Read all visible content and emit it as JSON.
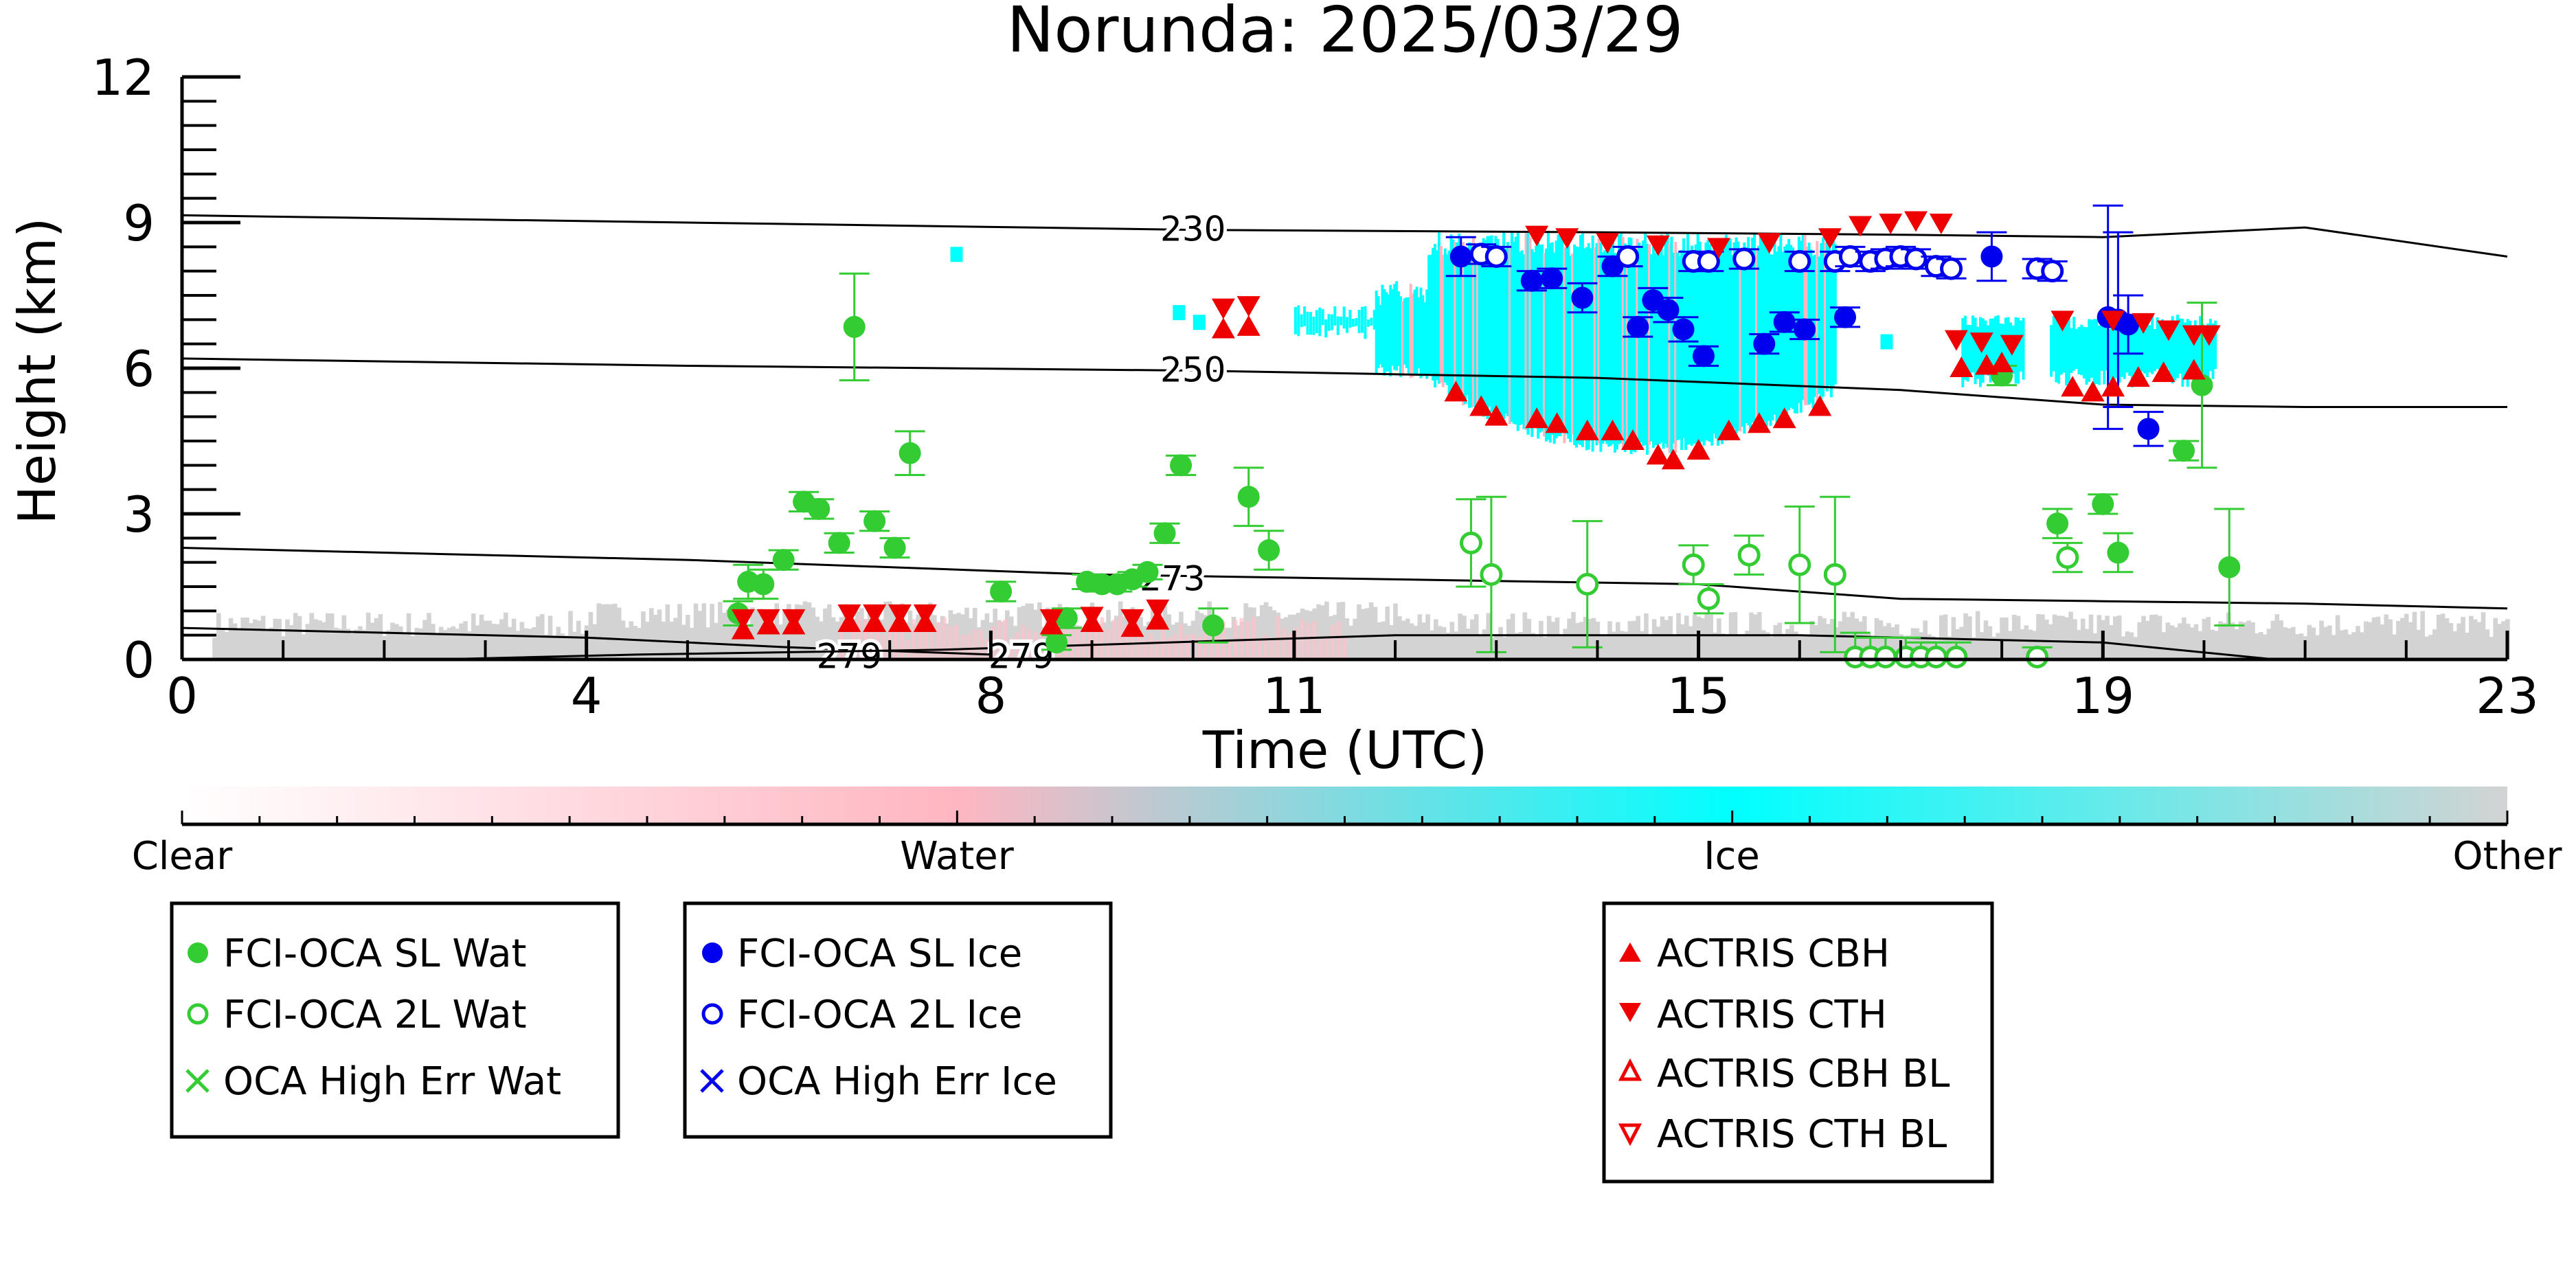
{
  "chart_data": {
    "type": "scatter",
    "title": "Norunda: 2025/03/29",
    "xlabel": "Time (UTC)",
    "ylabel": "Height (km)",
    "xlim": [
      0,
      23
    ],
    "ylim": [
      0,
      12
    ],
    "x_ticks": [
      "0",
      "4",
      "8",
      "11",
      "15",
      "19",
      "23"
    ],
    "y_ticks": [
      "0",
      "3",
      "6",
      "9",
      "12"
    ],
    "grid": false,
    "colorbar": {
      "labels": [
        "Clear",
        "Water",
        "Ice",
        "Other"
      ],
      "colors": [
        "#ffffff",
        "#ffb6c1",
        "#00ffff",
        "#d3d3d3"
      ]
    },
    "contours": [
      {
        "label": "230",
        "points": [
          [
            0,
            9.15
          ],
          [
            5,
            9.0
          ],
          [
            10,
            8.85
          ],
          [
            14,
            8.8
          ],
          [
            17,
            8.75
          ],
          [
            19,
            8.7
          ],
          [
            21,
            8.9
          ],
          [
            23,
            8.3
          ]
        ]
      },
      {
        "label": "250",
        "points": [
          [
            0,
            6.2
          ],
          [
            5,
            6.05
          ],
          [
            10,
            5.95
          ],
          [
            14,
            5.8
          ],
          [
            17,
            5.55
          ],
          [
            19,
            5.25
          ],
          [
            21,
            5.2
          ],
          [
            23,
            5.2
          ]
        ]
      },
      {
        "label": "273",
        "points": [
          [
            0,
            2.3
          ],
          [
            5,
            2.05
          ],
          [
            9,
            1.75
          ],
          [
            12,
            1.65
          ],
          [
            15,
            1.55
          ],
          [
            17,
            1.25
          ],
          [
            19,
            1.2
          ],
          [
            21,
            1.15
          ],
          [
            23,
            1.05
          ]
        ]
      },
      {
        "label": "279",
        "points": [
          [
            0,
            0.65
          ],
          [
            4,
            0.45
          ],
          [
            6,
            0.25
          ],
          [
            8,
            0.1
          ]
        ]
      },
      {
        "label": "279",
        "points": [
          [
            2.5,
            0.0
          ],
          [
            4.5,
            0.1
          ],
          [
            7.5,
            0.2
          ],
          [
            12,
            0.5
          ],
          [
            16,
            0.5
          ],
          [
            19,
            0.35
          ],
          [
            20.7,
            0.0
          ]
        ]
      }
    ],
    "series": [
      {
        "name": "FCI-OCA SL Wat",
        "color": "#33cc33",
        "marker": "filled-circle",
        "points": [
          {
            "x": 5.5,
            "y": 0.95,
            "err": 0.25
          },
          {
            "x": 5.6,
            "y": 1.6,
            "err": 0.35
          },
          {
            "x": 5.75,
            "y": 1.55,
            "err": 0.3
          },
          {
            "x": 5.95,
            "y": 2.05,
            "err": 0.2
          },
          {
            "x": 6.15,
            "y": 3.25,
            "err": 0.2
          },
          {
            "x": 6.3,
            "y": 3.1,
            "err": 0.2
          },
          {
            "x": 6.5,
            "y": 2.4,
            "err": 0.2
          },
          {
            "x": 6.65,
            "y": 6.85,
            "err": 1.1
          },
          {
            "x": 6.85,
            "y": 2.85,
            "err": 0.2
          },
          {
            "x": 7.05,
            "y": 2.3,
            "err": 0.2
          },
          {
            "x": 7.2,
            "y": 4.25,
            "err": 0.45
          },
          {
            "x": 8.1,
            "y": 1.4,
            "err": 0.2
          },
          {
            "x": 8.65,
            "y": 0.35,
            "err": 0.15
          },
          {
            "x": 8.75,
            "y": 0.85,
            "err": 0.2
          },
          {
            "x": 8.95,
            "y": 1.6,
            "err": 0.15
          },
          {
            "x": 9.1,
            "y": 1.55,
            "err": 0.15
          },
          {
            "x": 9.25,
            "y": 1.55,
            "err": 0.15
          },
          {
            "x": 9.4,
            "y": 1.65,
            "err": 0.15
          },
          {
            "x": 9.55,
            "y": 1.8,
            "err": 0.15
          },
          {
            "x": 9.72,
            "y": 2.6,
            "err": 0.2
          },
          {
            "x": 9.88,
            "y": 4.0,
            "err": 0.2
          },
          {
            "x": 10.2,
            "y": 0.7,
            "err": 0.35
          },
          {
            "x": 10.55,
            "y": 3.35,
            "err": 0.6
          },
          {
            "x": 10.75,
            "y": 2.25,
            "err": 0.4
          },
          {
            "x": 18.0,
            "y": 5.85,
            "err": 0.2
          },
          {
            "x": 18.55,
            "y": 2.8,
            "err": 0.3
          },
          {
            "x": 19.0,
            "y": 3.2,
            "err": 0.2
          },
          {
            "x": 19.15,
            "y": 2.2,
            "err": 0.4
          },
          {
            "x": 19.8,
            "y": 4.3,
            "err": 0.2
          },
          {
            "x": 19.98,
            "y": 5.65,
            "err": 1.7
          },
          {
            "x": 20.25,
            "y": 1.9,
            "err": 1.2
          }
        ]
      },
      {
        "name": "FCI-OCA 2L Wat",
        "color": "#33cc33",
        "marker": "open-circle",
        "points": [
          {
            "x": 12.75,
            "y": 2.4,
            "err": 0.9
          },
          {
            "x": 12.95,
            "y": 1.75,
            "err": 1.6
          },
          {
            "x": 13.9,
            "y": 1.55,
            "err": 1.3
          },
          {
            "x": 14.95,
            "y": 1.95,
            "err": 0.4
          },
          {
            "x": 15.1,
            "y": 1.25,
            "err": 0.3
          },
          {
            "x": 15.5,
            "y": 2.15,
            "err": 0.4
          },
          {
            "x": 16.0,
            "y": 1.95,
            "err": 1.2
          },
          {
            "x": 16.35,
            "y": 1.75,
            "err": 1.6
          },
          {
            "x": 16.55,
            "y": 0.05,
            "err": 0.5
          },
          {
            "x": 16.7,
            "y": 0.05,
            "err": 0.4
          },
          {
            "x": 16.85,
            "y": 0.05,
            "err": 0.4
          },
          {
            "x": 17.05,
            "y": 0.05,
            "err": 0.4
          },
          {
            "x": 17.2,
            "y": 0.05,
            "err": 0.3
          },
          {
            "x": 17.35,
            "y": 0.05,
            "err": 0.3
          },
          {
            "x": 17.55,
            "y": 0.05,
            "err": 0.3
          },
          {
            "x": 18.35,
            "y": 0.05,
            "err": 0.2
          },
          {
            "x": 18.65,
            "y": 2.1,
            "err": 0.3
          }
        ]
      },
      {
        "name": "OCA High Err Wat",
        "color": "#33cc33",
        "marker": "x",
        "points": []
      },
      {
        "name": "FCI-OCA SL Ice",
        "color": "#0000ee",
        "marker": "filled-circle",
        "points": [
          {
            "x": 12.65,
            "y": 8.3,
            "err": 0.4
          },
          {
            "x": 13.35,
            "y": 7.8,
            "err": 0.2
          },
          {
            "x": 13.55,
            "y": 7.85,
            "err": 0.2
          },
          {
            "x": 13.85,
            "y": 7.45,
            "err": 0.3
          },
          {
            "x": 14.15,
            "y": 8.1,
            "err": 0.2
          },
          {
            "x": 14.4,
            "y": 6.85,
            "err": 0.2
          },
          {
            "x": 14.55,
            "y": 7.4,
            "err": 0.25
          },
          {
            "x": 14.7,
            "y": 7.2,
            "err": 0.25
          },
          {
            "x": 14.85,
            "y": 6.8,
            "err": 0.25
          },
          {
            "x": 15.05,
            "y": 6.25,
            "err": 0.2
          },
          {
            "x": 15.65,
            "y": 6.5,
            "err": 0.2
          },
          {
            "x": 15.85,
            "y": 6.95,
            "err": 0.2
          },
          {
            "x": 16.05,
            "y": 6.8,
            "err": 0.2
          },
          {
            "x": 16.45,
            "y": 7.05,
            "err": 0.2
          },
          {
            "x": 17.9,
            "y": 8.3,
            "err": 0.5
          },
          {
            "x": 19.05,
            "y": 7.05,
            "err": 2.3
          },
          {
            "x": 19.15,
            "y": 7.0,
            "err": 1.8
          },
          {
            "x": 19.25,
            "y": 6.9,
            "err": 0.6
          },
          {
            "x": 19.45,
            "y": 4.75,
            "err": 0.35
          }
        ]
      },
      {
        "name": "FCI-OCA 2L Ice",
        "color": "#0000ee",
        "marker": "open-circle",
        "points": [
          {
            "x": 12.85,
            "y": 8.35,
            "err": 0.2
          },
          {
            "x": 13.0,
            "y": 8.3,
            "err": 0.2
          },
          {
            "x": 14.3,
            "y": 8.3,
            "err": 0.2
          },
          {
            "x": 14.95,
            "y": 8.2,
            "err": 0.2
          },
          {
            "x": 15.1,
            "y": 8.2,
            "err": 0.2
          },
          {
            "x": 15.45,
            "y": 8.25,
            "err": 0.2
          },
          {
            "x": 16.0,
            "y": 8.2,
            "err": 0.2
          },
          {
            "x": 16.35,
            "y": 8.2,
            "err": 0.2
          },
          {
            "x": 16.5,
            "y": 8.3,
            "err": 0.2
          },
          {
            "x": 16.7,
            "y": 8.2,
            "err": 0.2
          },
          {
            "x": 16.85,
            "y": 8.25,
            "err": 0.2
          },
          {
            "x": 17.0,
            "y": 8.3,
            "err": 0.2
          },
          {
            "x": 17.15,
            "y": 8.25,
            "err": 0.2
          },
          {
            "x": 17.35,
            "y": 8.1,
            "err": 0.2
          },
          {
            "x": 17.5,
            "y": 8.05,
            "err": 0.2
          },
          {
            "x": 18.35,
            "y": 8.05,
            "err": 0.2
          },
          {
            "x": 18.5,
            "y": 8.0,
            "err": 0.2
          }
        ]
      },
      {
        "name": "OCA High Err Ice",
        "color": "#0000ee",
        "marker": "x",
        "points": []
      },
      {
        "name": "ACTRIS CBH",
        "color": "#ee0000",
        "marker": "filled-triangle-up",
        "points": [
          {
            "x": 5.55,
            "y": 0.6
          },
          {
            "x": 5.8,
            "y": 0.7
          },
          {
            "x": 6.05,
            "y": 0.7
          },
          {
            "x": 6.6,
            "y": 0.75
          },
          {
            "x": 6.85,
            "y": 0.75
          },
          {
            "x": 7.1,
            "y": 0.75
          },
          {
            "x": 7.35,
            "y": 0.75
          },
          {
            "x": 8.6,
            "y": 0.7
          },
          {
            "x": 9.0,
            "y": 0.75
          },
          {
            "x": 9.4,
            "y": 0.65
          },
          {
            "x": 9.65,
            "y": 0.8
          },
          {
            "x": 10.3,
            "y": 6.8
          },
          {
            "x": 10.55,
            "y": 6.85
          },
          {
            "x": 12.6,
            "y": 5.5
          },
          {
            "x": 12.85,
            "y": 5.2
          },
          {
            "x": 13.0,
            "y": 5.0
          },
          {
            "x": 13.4,
            "y": 4.95
          },
          {
            "x": 13.6,
            "y": 4.85
          },
          {
            "x": 13.9,
            "y": 4.7
          },
          {
            "x": 14.15,
            "y": 4.7
          },
          {
            "x": 14.35,
            "y": 4.5
          },
          {
            "x": 14.6,
            "y": 4.2
          },
          {
            "x": 14.75,
            "y": 4.1
          },
          {
            "x": 15.0,
            "y": 4.3
          },
          {
            "x": 15.3,
            "y": 4.7
          },
          {
            "x": 15.6,
            "y": 4.85
          },
          {
            "x": 15.85,
            "y": 4.95
          },
          {
            "x": 16.2,
            "y": 5.2
          },
          {
            "x": 17.6,
            "y": 6.0
          },
          {
            "x": 17.85,
            "y": 6.05
          },
          {
            "x": 18.0,
            "y": 6.1
          },
          {
            "x": 18.7,
            "y": 5.6
          },
          {
            "x": 18.9,
            "y": 5.5
          },
          {
            "x": 19.1,
            "y": 5.6
          },
          {
            "x": 19.35,
            "y": 5.8
          },
          {
            "x": 19.6,
            "y": 5.9
          },
          {
            "x": 19.9,
            "y": 5.95
          }
        ]
      },
      {
        "name": "ACTRIS CTH",
        "color": "#ee0000",
        "marker": "filled-triangle-down",
        "points": [
          {
            "x": 5.55,
            "y": 0.85
          },
          {
            "x": 5.8,
            "y": 0.85
          },
          {
            "x": 6.05,
            "y": 0.85
          },
          {
            "x": 6.6,
            "y": 0.95
          },
          {
            "x": 6.85,
            "y": 0.95
          },
          {
            "x": 7.1,
            "y": 0.95
          },
          {
            "x": 7.35,
            "y": 0.95
          },
          {
            "x": 8.6,
            "y": 0.85
          },
          {
            "x": 9.0,
            "y": 0.9
          },
          {
            "x": 9.4,
            "y": 0.85
          },
          {
            "x": 9.65,
            "y": 1.05
          },
          {
            "x": 10.3,
            "y": 7.25
          },
          {
            "x": 10.55,
            "y": 7.3
          },
          {
            "x": 13.4,
            "y": 8.75
          },
          {
            "x": 13.7,
            "y": 8.7
          },
          {
            "x": 14.1,
            "y": 8.6
          },
          {
            "x": 14.6,
            "y": 8.55
          },
          {
            "x": 15.2,
            "y": 8.5
          },
          {
            "x": 15.7,
            "y": 8.6
          },
          {
            "x": 16.3,
            "y": 8.7
          },
          {
            "x": 16.6,
            "y": 8.95
          },
          {
            "x": 16.9,
            "y": 9.0
          },
          {
            "x": 17.15,
            "y": 9.05
          },
          {
            "x": 17.4,
            "y": 9.0
          },
          {
            "x": 17.55,
            "y": 6.6
          },
          {
            "x": 17.8,
            "y": 6.55
          },
          {
            "x": 18.1,
            "y": 6.5
          },
          {
            "x": 18.6,
            "y": 7.0
          },
          {
            "x": 19.1,
            "y": 7.0
          },
          {
            "x": 19.4,
            "y": 6.95
          },
          {
            "x": 19.65,
            "y": 6.8
          },
          {
            "x": 19.9,
            "y": 6.7
          },
          {
            "x": 20.05,
            "y": 6.7
          }
        ]
      },
      {
        "name": "ACTRIS CBH BL",
        "color": "#ee0000",
        "marker": "open-triangle-up",
        "points": []
      },
      {
        "name": "ACTRIS CTH BL",
        "color": "#ee0000",
        "marker": "open-triangle-down",
        "points": []
      }
    ],
    "legend": [
      [
        "FCI-OCA SL Wat",
        "FCI-OCA 2L Wat",
        "OCA High Err Wat"
      ],
      [
        "FCI-OCA SL Ice",
        "FCI-OCA 2L Ice",
        "OCA High Err Ice"
      ],
      [
        "ACTRIS CBH",
        "ACTRIS CTH",
        "ACTRIS CBH BL",
        "ACTRIS CTH BL"
      ]
    ]
  }
}
